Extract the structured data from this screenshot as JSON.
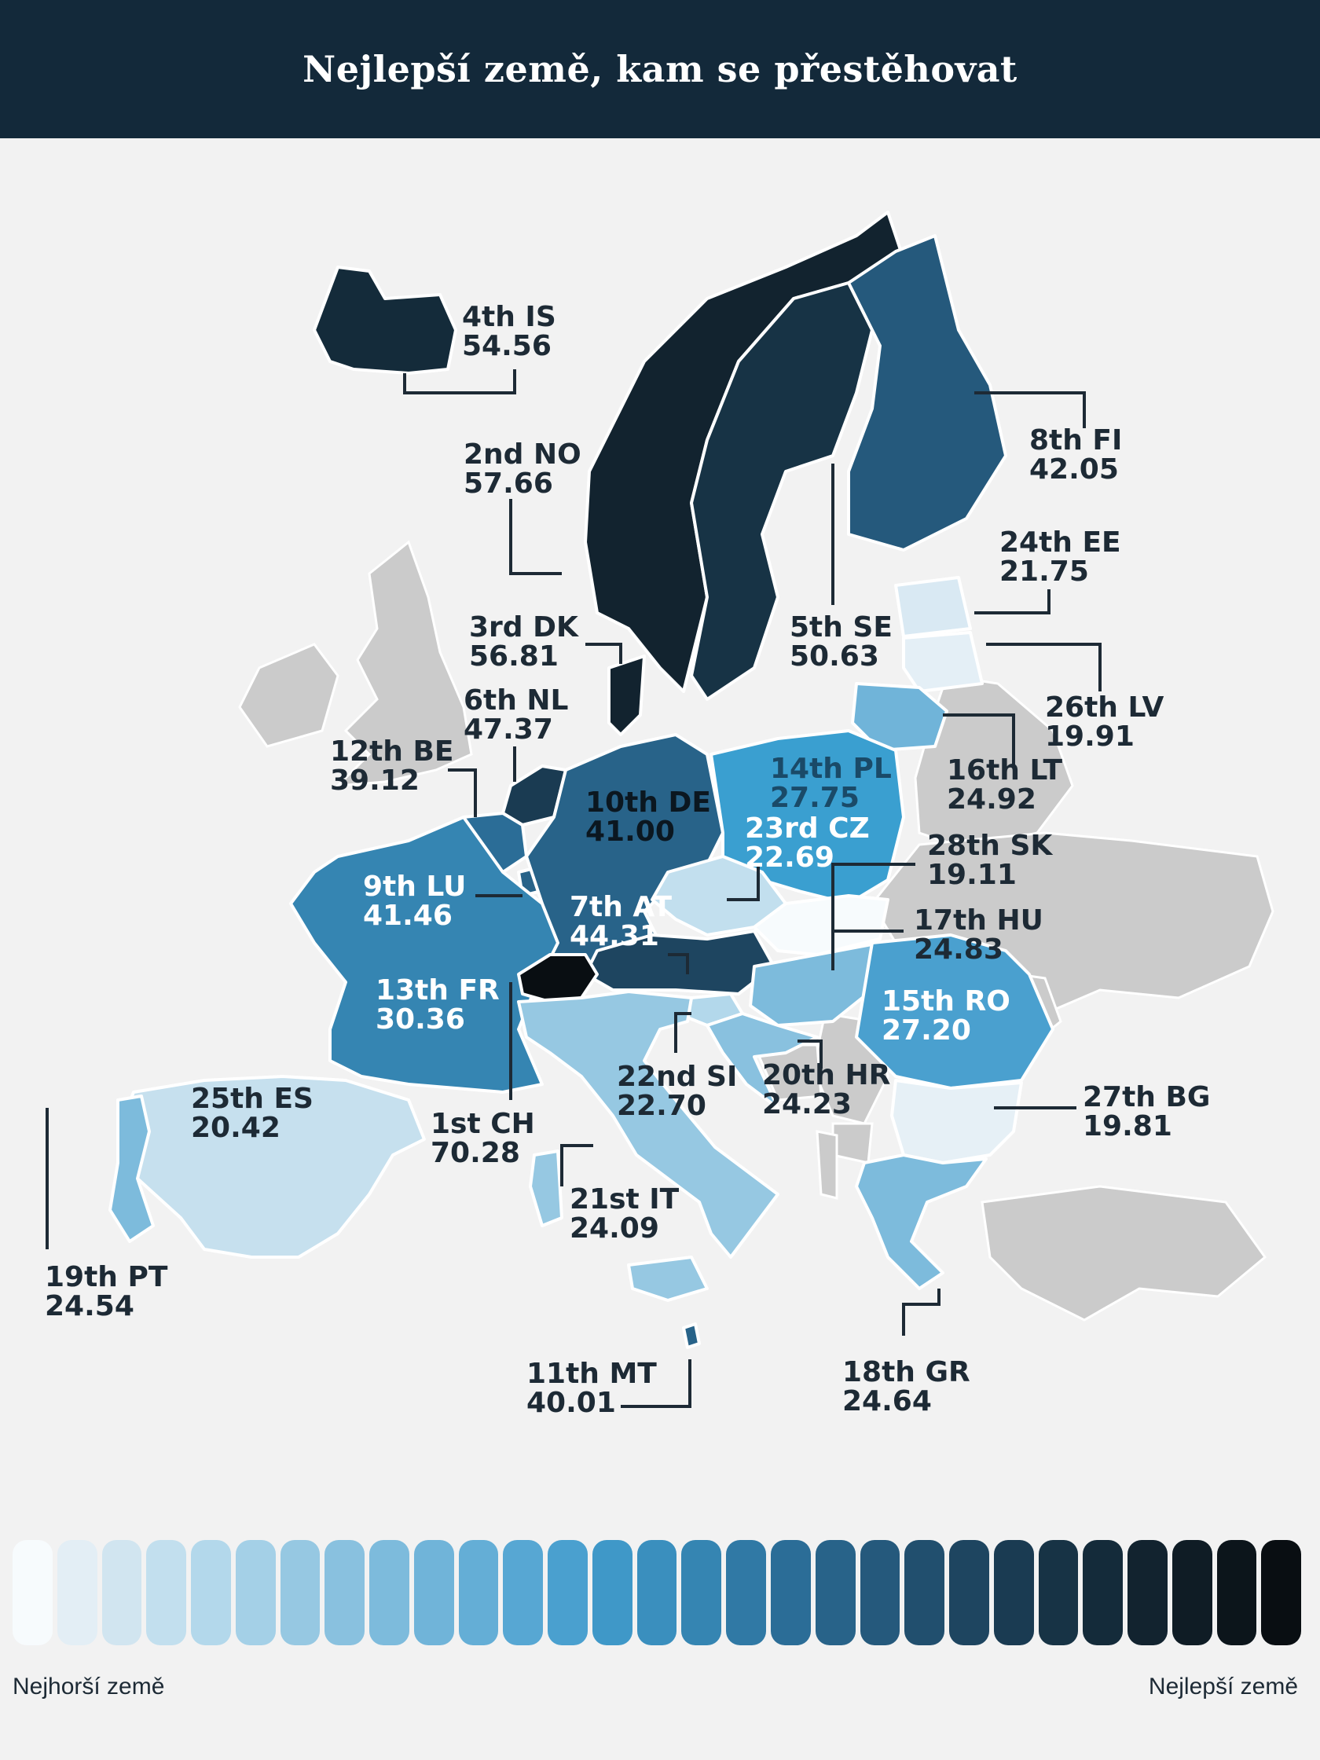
{
  "title": "Nejlepší země, kam se přestěhovat",
  "legend": {
    "worst_label": "Nejhorší země",
    "best_label": "Nejlepší země",
    "gradient": [
      "#f7fbfd",
      "#e3eef5",
      "#d1e5f0",
      "#c2dfee",
      "#b3d8eb",
      "#a4d0e7",
      "#96c8e2",
      "#89c1df",
      "#7dbbdc",
      "#70b4d9",
      "#64aed6",
      "#57a7d3",
      "#4aa0cf",
      "#3f98c8",
      "#3a8fbe",
      "#3585b2",
      "#3079a5",
      "#2b6d97",
      "#286389",
      "#25597c",
      "#214f6e",
      "#1e4560",
      "#1a3b52",
      "#173345",
      "#142b3a",
      "#12232f",
      "#0f1c25",
      "#0c151b",
      "#090e12"
    ],
    "no_data_color": "#cbcbcb"
  },
  "countries": [
    {
      "code": "IS",
      "rank": "4th IS",
      "score": "54.56",
      "fill": "#142b3a"
    },
    {
      "code": "NO",
      "rank": "2nd NO",
      "score": "57.66",
      "fill": "#12232f"
    },
    {
      "code": "FI",
      "rank": "8th FI",
      "score": "42.05",
      "fill": "#25597c"
    },
    {
      "code": "SE",
      "rank": "5th SE",
      "score": "50.63",
      "fill": "#173345"
    },
    {
      "code": "DK",
      "rank": "3rd DK",
      "score": "56.81",
      "fill": "#12232f"
    },
    {
      "code": "EE",
      "rank": "24th EE",
      "score": "21.75",
      "fill": "#d9e9f3"
    },
    {
      "code": "LV",
      "rank": "26th LV",
      "score": "19.91",
      "fill": "#e4eff6"
    },
    {
      "code": "NL",
      "rank": "6th NL",
      "score": "47.37",
      "fill": "#1a3b52"
    },
    {
      "code": "LT",
      "rank": "16th LT",
      "score": "24.92",
      "fill": "#70b4d9"
    },
    {
      "code": "BE",
      "rank": "12th BE",
      "score": "39.12",
      "fill": "#2b6d97"
    },
    {
      "code": "DE",
      "rank": "10th DE",
      "score": "41.00",
      "fill": "#286389"
    },
    {
      "code": "PL",
      "rank": "14th PL",
      "score": "27.75",
      "fill": "#3a9fd0"
    },
    {
      "code": "CZ",
      "rank": "23rd CZ",
      "score": "22.69",
      "fill": "#c2dfee"
    },
    {
      "code": "SK",
      "rank": "28th SK",
      "score": "19.11",
      "fill": "#f7fbfd"
    },
    {
      "code": "LU",
      "rank": "9th LU",
      "score": "41.46",
      "fill": "#286389"
    },
    {
      "code": "AT",
      "rank": "7th AT",
      "score": "44.31",
      "fill": "#1e4560"
    },
    {
      "code": "HU",
      "rank": "17th HU",
      "score": "24.83",
      "fill": "#7dbbdc"
    },
    {
      "code": "FR",
      "rank": "13th FR",
      "score": "30.36",
      "fill": "#3585b2"
    },
    {
      "code": "RO",
      "rank": "15th RO",
      "score": "27.20",
      "fill": "#4aa0cf"
    },
    {
      "code": "CH",
      "rank": "1st CH",
      "score": "70.28",
      "fill": "#090e12"
    },
    {
      "code": "SI",
      "rank": "22nd SI",
      "score": "22.70",
      "fill": "#b3d8eb"
    },
    {
      "code": "HR",
      "rank": "20th HR",
      "score": "24.23",
      "fill": "#89c1df"
    },
    {
      "code": "ES",
      "rank": "25th ES",
      "score": "20.42",
      "fill": "#c6e0ee"
    },
    {
      "code": "BG",
      "rank": "27th BG",
      "score": "19.81",
      "fill": "#e6f0f6"
    },
    {
      "code": "PT",
      "rank": "19th PT",
      "score": "24.54",
      "fill": "#7dbbdc"
    },
    {
      "code": "IT",
      "rank": "21st IT",
      "score": "24.09",
      "fill": "#96c8e2"
    },
    {
      "code": "MT",
      "rank": "11th MT",
      "score": "40.01",
      "fill": "#286389"
    },
    {
      "code": "GR",
      "rank": "18th GR",
      "score": "24.64",
      "fill": "#7dbbdc"
    }
  ]
}
